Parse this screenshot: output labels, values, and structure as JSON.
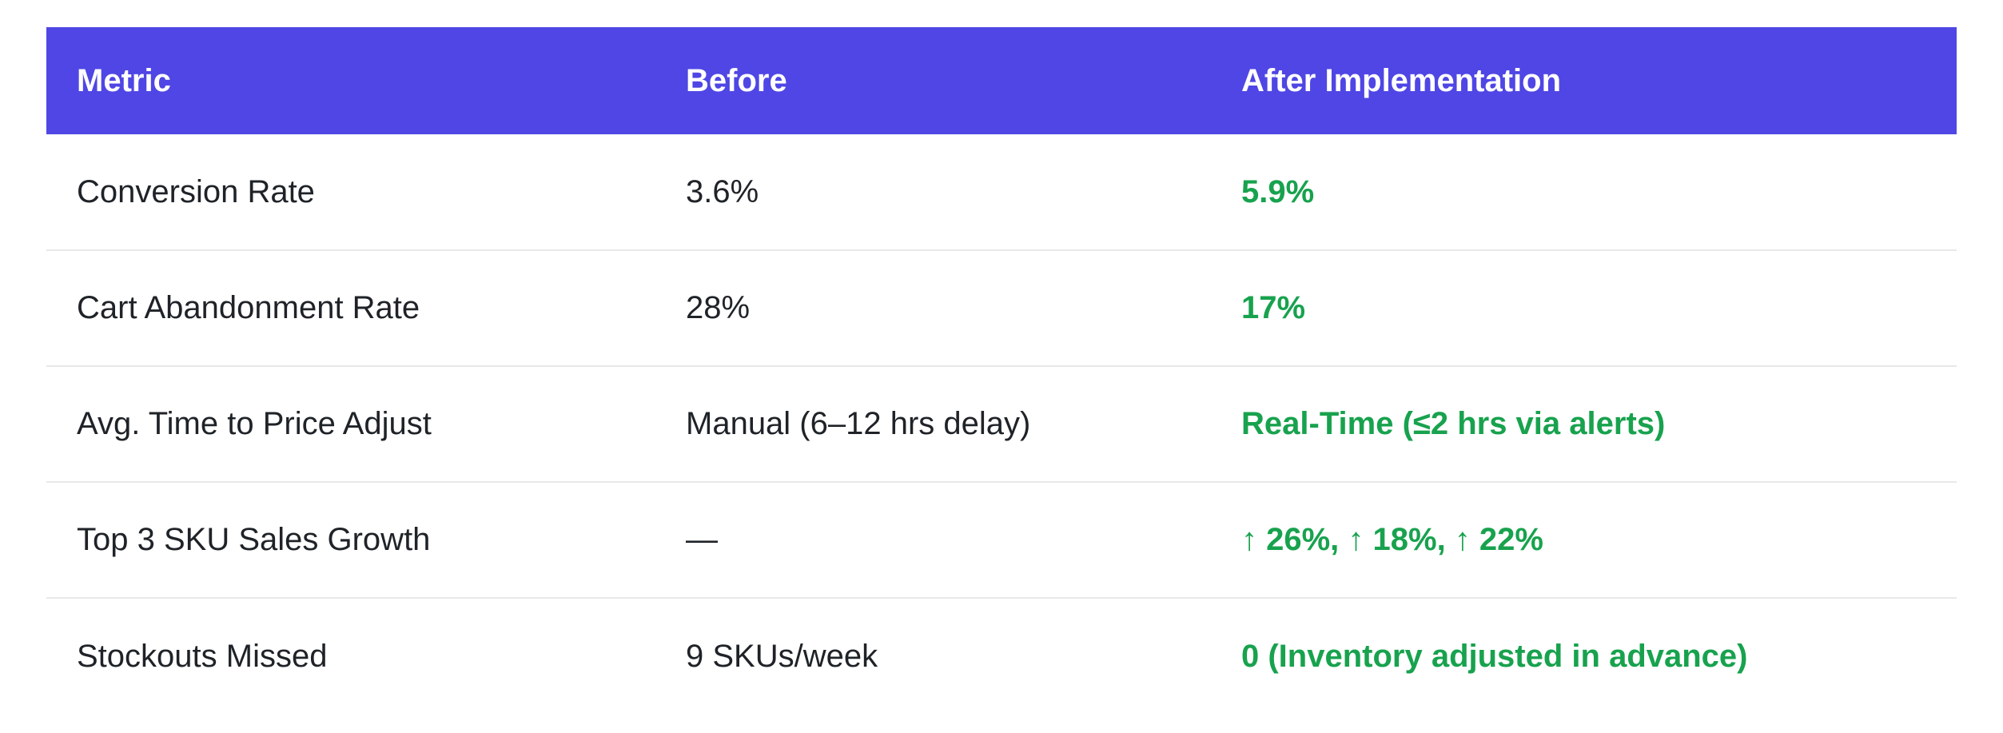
{
  "table": {
    "columns": [
      {
        "label": "Metric"
      },
      {
        "label": "Before"
      },
      {
        "label": "After Implementation"
      }
    ],
    "rows": [
      {
        "metric": "Conversion Rate",
        "before": "3.6%",
        "after": "5.9%"
      },
      {
        "metric": "Cart Abandonment Rate",
        "before": "28%",
        "after": "17%"
      },
      {
        "metric": "Avg. Time to Price Adjust",
        "before": "Manual (6–12 hrs delay)",
        "after": "Real-Time (≤2 hrs via alerts)"
      },
      {
        "metric": "Top 3 SKU Sales Growth",
        "before": "—",
        "after": "↑ 26%, ↑ 18%, ↑ 22%"
      },
      {
        "metric": "Stockouts Missed",
        "before": "9 SKUs/week",
        "after": "0 (Inventory adjusted in advance)"
      }
    ],
    "colors": {
      "header_background": "#4F46E5",
      "header_text": "#FFFFFF",
      "body_text": "#1F2328",
      "after_value_green": "#18A24E",
      "row_divider": "#E8E8E8",
      "page_background": "#FFFFFF"
    }
  },
  "chart_data": {
    "type": "table",
    "title": "",
    "columns": [
      "Metric",
      "Before",
      "After Implementation"
    ],
    "rows": [
      [
        "Conversion Rate",
        "3.6%",
        "5.9%"
      ],
      [
        "Cart Abandonment Rate",
        "28%",
        "17%"
      ],
      [
        "Avg. Time to Price Adjust",
        "Manual (6–12 hrs delay)",
        "Real-Time (≤2 hrs via alerts)"
      ],
      [
        "Top 3 SKU Sales Growth",
        "—",
        "↑ 26%, ↑ 18%, ↑ 22%"
      ],
      [
        "Stockouts Missed",
        "9 SKUs/week",
        "0 (Inventory adjusted in advance)"
      ]
    ],
    "numeric_highlights": {
      "conversion_rate_before_pct": 3.6,
      "conversion_rate_after_pct": 5.9,
      "cart_abandonment_before_pct": 28,
      "cart_abandonment_after_pct": 17,
      "top3_sku_sales_growth_after_pct": [
        26,
        18,
        22
      ],
      "stockouts_missed_before_per_week": 9,
      "stockouts_missed_after": 0
    },
    "layout_hints": {
      "header_style": "solid indigo bar, white bold text",
      "after_column_style": "green bold values",
      "row_separators": "thin light-gray horizontal lines, no outer border"
    }
  }
}
